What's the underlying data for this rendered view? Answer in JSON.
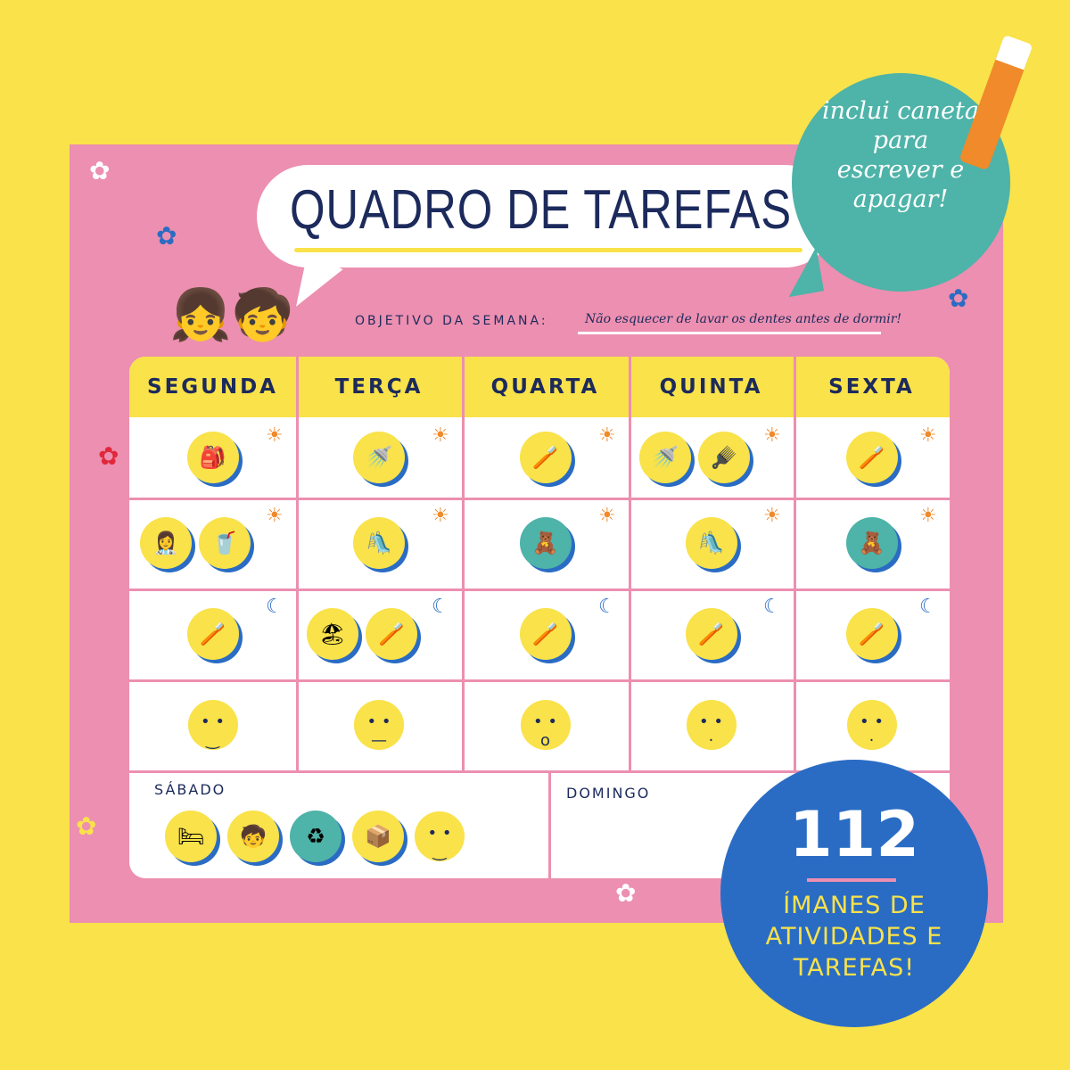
{
  "title": "QUADRO DE TAREFAS",
  "objective": {
    "label": "OBJETIVO DA SEMANA:",
    "value": "Não esquecer de lavar os dentes antes de dormir!"
  },
  "days": [
    "SEGUNDA",
    "TERÇA",
    "QUARTA",
    "QUINTA",
    "SEXTA"
  ],
  "weekend": {
    "saturday": "SÁBADO",
    "sunday": "DOMINGO"
  },
  "rows": [
    {
      "time_icon": "sunrise-icon",
      "cells": [
        [
          "backpack-icon"
        ],
        [
          "shower-icon"
        ],
        [
          "tooth-brushing-icon"
        ],
        [
          "shower-icon",
          "comb-icon"
        ],
        [
          "tooth-brushing-icon"
        ]
      ]
    },
    {
      "time_icon": "sun-icon",
      "cells": [
        [
          "doctor-icon",
          "breakfast-icon"
        ],
        [
          "slide-icon"
        ],
        [
          "toys-icon"
        ],
        [
          "slide-icon"
        ],
        [
          "toys-icon"
        ]
      ]
    },
    {
      "time_icon": "moon-icon",
      "cells": [
        [
          "toothbrush-icon"
        ],
        [
          "towel-icon",
          "toothbrush-icon"
        ],
        [
          "toothbrush-icon"
        ],
        [
          "toothbrush-icon"
        ],
        [
          "toothbrush-icon"
        ]
      ]
    },
    {
      "time_icon": "mood-icon",
      "cells": [
        [
          "happy-face-icon"
        ],
        [
          "neutral-face-icon"
        ],
        [
          "surprised-face-icon"
        ],
        [
          "calm-face-icon"
        ],
        [
          "calm-face-icon"
        ]
      ]
    }
  ],
  "saturday_items": [
    "bed-icon",
    "playing-icon",
    "recycle-icon",
    "toy-box-icon",
    "happy-face-icon"
  ],
  "pen_bubble": "inclui caneta para escrever e apagar!",
  "badge": {
    "number": "112",
    "text": "ÍMANES DE ATIVIDADES E TAREFAS!"
  },
  "colors": {
    "background": "#f9e24a",
    "board": "#ec8fb0",
    "navy": "#1c2a5c",
    "teal": "#4eb3a8",
    "blue": "#2a6cc4"
  }
}
